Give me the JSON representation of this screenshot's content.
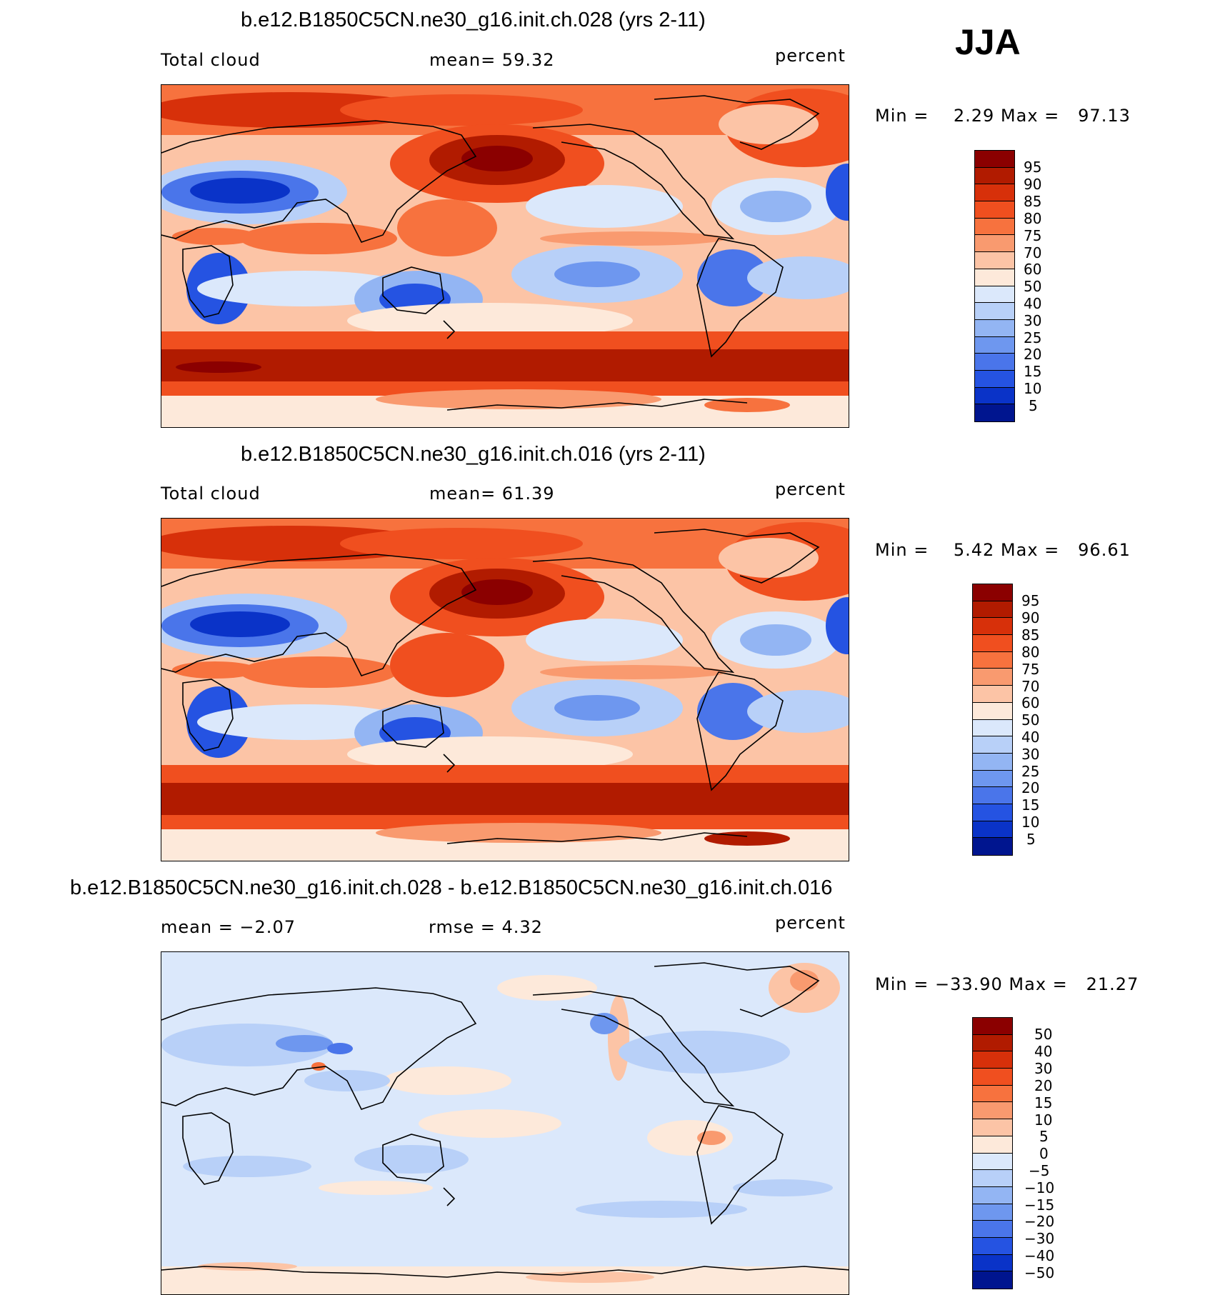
{
  "season": "JJA",
  "panels": [
    {
      "title": "b.e12.B1850C5CN.ne30_g16.init.ch.028 (yrs 2-11)",
      "left_text": "Total cloud",
      "center_text": "mean=   59.32",
      "right_text": "percent",
      "minmax": "Min =    2.29 Max =   97.13",
      "levels": [
        "95",
        "90",
        "85",
        "80",
        "75",
        "70",
        "60",
        "50",
        "40",
        "30",
        "25",
        "20",
        "15",
        "10",
        "5"
      ],
      "colors": [
        "#8b0000",
        "#b11b00",
        "#d7300a",
        "#f04f1f",
        "#f7723e",
        "#f99a6f",
        "#fcc4a6",
        "#fde9da",
        "#dbe8fb",
        "#b8d0f8",
        "#93b5f3",
        "#6e97ef",
        "#4a75ea",
        "#2553e2",
        "#0a33c8",
        "#00158f"
      ]
    },
    {
      "title": "b.e12.B1850C5CN.ne30_g16.init.ch.016 (yrs 2-11)",
      "left_text": "Total cloud",
      "center_text": "mean=   61.39",
      "right_text": "percent",
      "minmax": "Min =    5.42 Max =   96.61",
      "levels": [
        "95",
        "90",
        "85",
        "80",
        "75",
        "70",
        "60",
        "50",
        "40",
        "30",
        "25",
        "20",
        "15",
        "10",
        "5"
      ],
      "colors": [
        "#8b0000",
        "#b11b00",
        "#d7300a",
        "#f04f1f",
        "#f7723e",
        "#f99a6f",
        "#fcc4a6",
        "#fde9da",
        "#dbe8fb",
        "#b8d0f8",
        "#93b5f3",
        "#6e97ef",
        "#4a75ea",
        "#2553e2",
        "#0a33c8",
        "#00158f"
      ]
    },
    {
      "title": "b.e12.B1850C5CN.ne30_g16.init.ch.028 - b.e12.B1850C5CN.ne30_g16.init.ch.016",
      "left_text": "mean =   −2.07",
      "center_text": "rmse =    4.32",
      "right_text": "percent",
      "minmax": "Min = −33.90 Max =   21.27",
      "levels": [
        "50",
        "40",
        "30",
        "20",
        "15",
        "10",
        "5",
        "0",
        "−5",
        "−10",
        "−15",
        "−20",
        "−30",
        "−40",
        "−50"
      ],
      "colors": [
        "#8b0000",
        "#b11b00",
        "#d7300a",
        "#f04f1f",
        "#f7723e",
        "#f99a6f",
        "#fcc4a6",
        "#fde9da",
        "#dbe8fb",
        "#b8d0f8",
        "#93b5f3",
        "#6e97ef",
        "#4a75ea",
        "#2553e2",
        "#0a33c8",
        "#00158f"
      ]
    }
  ]
}
